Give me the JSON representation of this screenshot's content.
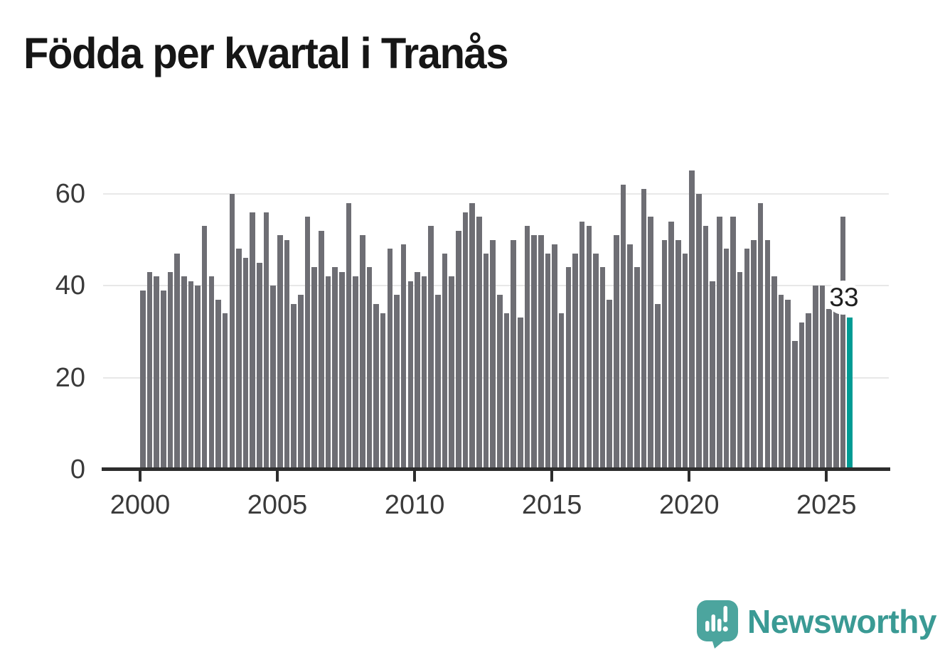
{
  "header": {
    "title": "Födda per kvartal i Tranås"
  },
  "chart": {
    "y_ticks": [
      0,
      20,
      40,
      60
    ],
    "x_ticks": [
      "2000",
      "2005",
      "2010",
      "2015",
      "2020",
      "2025"
    ],
    "annotation_label": "33"
  },
  "branding": {
    "wordmark": "Newsworthy"
  },
  "colors": {
    "bar": "#6e6e74",
    "highlight": "#009b94",
    "grid": "#e8e8e8",
    "axis": "#2d2d2d",
    "axis_text": "#3a3a3a",
    "title_text": "#161616",
    "brand_teal": "#3a9a94",
    "brand_icon": "#4ca59e"
  },
  "chart_data": {
    "type": "bar",
    "title": "Födda per kvartal i Tranås",
    "x_start": "2000-Q1",
    "x_end": "2025-Q4",
    "frequency": "quarterly",
    "values": [
      39,
      43,
      42,
      39,
      43,
      47,
      42,
      41,
      40,
      53,
      42,
      37,
      34,
      60,
      48,
      46,
      56,
      45,
      56,
      40,
      51,
      50,
      36,
      38,
      55,
      44,
      52,
      42,
      44,
      43,
      58,
      42,
      51,
      44,
      36,
      34,
      48,
      38,
      49,
      41,
      43,
      42,
      53,
      38,
      47,
      42,
      52,
      56,
      58,
      55,
      47,
      50,
      38,
      34,
      50,
      33,
      53,
      51,
      51,
      47,
      49,
      34,
      44,
      47,
      54,
      53,
      47,
      44,
      37,
      51,
      62,
      49,
      44,
      61,
      55,
      36,
      50,
      54,
      50,
      47,
      65,
      60,
      53,
      41,
      55,
      48,
      55,
      43,
      48,
      50,
      58,
      50,
      42,
      38,
      37,
      28,
      32,
      34,
      40,
      40,
      35,
      36,
      55,
      33
    ],
    "highlight_index": 103,
    "highlight_label": "33",
    "xlabel": "",
    "ylabel": "",
    "ylim": [
      0,
      65
    ],
    "yticks": [
      0,
      20,
      40,
      60
    ],
    "xticks": [
      "2000",
      "2005",
      "2010",
      "2015",
      "2020",
      "2025"
    ],
    "grid": true,
    "legend": false
  }
}
